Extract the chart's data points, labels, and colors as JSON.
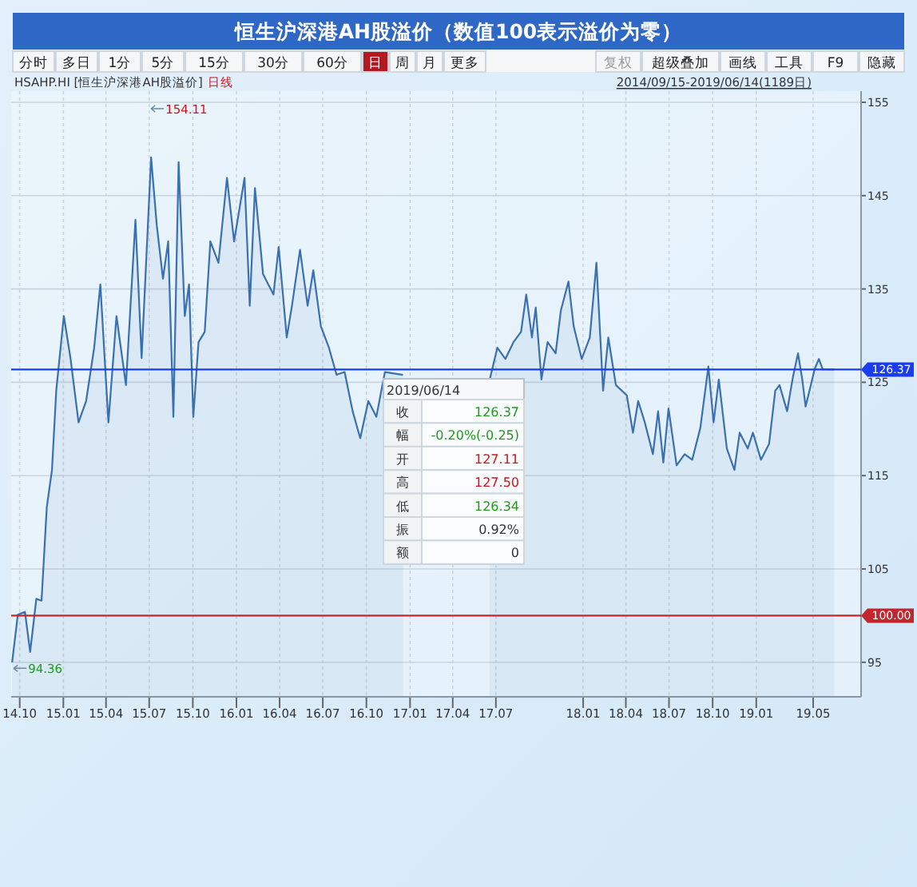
{
  "chart_data": {
    "type": "area",
    "title": "恒生沪深港AH股溢价（数值100表示溢价为零）",
    "x": [
      "2014-09-15",
      "2014-09-27",
      "2014-10-12",
      "2014-10-23",
      "2014-11-05",
      "2014-11-16",
      "2014-11-27",
      "2014-12-08",
      "2014-12-17",
      "2015-01-02",
      "2015-01-16",
      "2015-02-02",
      "2015-02-18",
      "2015-03-07",
      "2015-03-20",
      "2015-04-06",
      "2015-04-23",
      "2015-05-13",
      "2015-06-02",
      "2015-06-15",
      "2015-07-05",
      "2015-07-17",
      "2015-07-30",
      "2015-08-10",
      "2015-08-21",
      "2015-09-01",
      "2015-09-14",
      "2015-09-23",
      "2015-10-02",
      "2015-10-13",
      "2015-10-26",
      "2015-11-07",
      "2015-11-24",
      "2015-12-12",
      "2015-12-27",
      "2016-01-18",
      "2016-01-29",
      "2016-02-09",
      "2016-02-26",
      "2016-03-19",
      "2016-03-30",
      "2016-04-16",
      "2016-04-27",
      "2016-05-14",
      "2016-05-30",
      "2016-06-11",
      "2016-06-27",
      "2016-07-14",
      "2016-07-30",
      "2016-08-16",
      "2016-09-02",
      "2016-09-18",
      "2016-10-05",
      "2016-10-22",
      "2016-11-09",
      "2016-12-17",
      "2017-03-15",
      "2017-06-18",
      "2017-07-04",
      "2017-07-21",
      "2017-08-07",
      "2017-08-23",
      "2017-09-03",
      "2017-09-15",
      "2017-09-23",
      "2017-10-05",
      "2017-10-18",
      "2017-11-04",
      "2017-11-15",
      "2017-12-01",
      "2017-12-12",
      "2017-12-29",
      "2018-01-15",
      "2018-01-29",
      "2018-02-12",
      "2018-02-23",
      "2018-03-11",
      "2018-04-03",
      "2018-04-16",
      "2018-04-27",
      "2018-05-11",
      "2018-05-28",
      "2018-06-08",
      "2018-06-19",
      "2018-06-30",
      "2018-07-17",
      "2018-08-03",
      "2018-08-19",
      "2018-09-05",
      "2018-09-22",
      "2018-10-03",
      "2018-10-14",
      "2018-10-31",
      "2018-11-16",
      "2018-11-27",
      "2018-12-14",
      "2018-12-25",
      "2019-01-11",
      "2019-01-28",
      "2019-02-10",
      "2019-02-19",
      "2019-03-07",
      "2019-03-19",
      "2019-03-30",
      "2019-04-08",
      "2019-04-15",
      "2019-04-26",
      "2019-05-04",
      "2019-05-13",
      "2019-05-21",
      "2019-06-14"
    ],
    "series": [
      {
        "color": "#3a70b0",
        "values": [
          95.0,
          100.1,
          100.4,
          96.1,
          101.8,
          101.6,
          111.6,
          115.6,
          124.1,
          132.1,
          127.6,
          120.7,
          123.0,
          128.7,
          135.5,
          120.7,
          132.1,
          124.7,
          142.4,
          127.6,
          149.1,
          141.8,
          136.1,
          140.1,
          121.3,
          148.6,
          132.1,
          135.5,
          121.3,
          129.3,
          130.4,
          140.1,
          137.8,
          146.9,
          140.1,
          146.9,
          133.2,
          145.8,
          136.6,
          134.4,
          139.5,
          129.8,
          133.2,
          139.2,
          133.2,
          137.0,
          131.0,
          128.7,
          125.8,
          126.1,
          121.9,
          119.0,
          123.0,
          121.3,
          126.1,
          125.8,
          null,
          125.3,
          128.7,
          127.5,
          129.3,
          130.4,
          134.4,
          129.8,
          133.0,
          125.3,
          129.3,
          128.1,
          132.7,
          135.8,
          131.0,
          127.5,
          129.8,
          137.8,
          124.1,
          129.8,
          124.7,
          123.6,
          119.6,
          123.0,
          120.7,
          117.3,
          121.9,
          116.4,
          122.2,
          116.1,
          117.3,
          116.7,
          120.1,
          126.7,
          120.7,
          125.3,
          117.9,
          115.6,
          119.6,
          117.9,
          119.6,
          116.7,
          118.4,
          124.1,
          124.7,
          121.9,
          125.5,
          128.1,
          125.3,
          122.4,
          124.7,
          126.4,
          127.5,
          126.4,
          126.37
        ]
      }
    ],
    "xlim": [
      "2014-09-13",
      "2019-08-10"
    ],
    "xticks": [
      {
        "value": "2014-10-01",
        "label": "14.10"
      },
      {
        "value": "2015-01-01",
        "label": "15.01"
      },
      {
        "value": "2015-04-01",
        "label": "15.04"
      },
      {
        "value": "2015-07-01",
        "label": "15.07"
      },
      {
        "value": "2015-10-01",
        "label": "15.10"
      },
      {
        "value": "2016-01-01",
        "label": "16.01"
      },
      {
        "value": "2016-04-01",
        "label": "16.04"
      },
      {
        "value": "2016-07-01",
        "label": "16.07"
      },
      {
        "value": "2016-10-01",
        "label": "16.10"
      },
      {
        "value": "2017-01-01",
        "label": "17.01"
      },
      {
        "value": "2017-04-01",
        "label": "17.04"
      },
      {
        "value": "2017-07-01",
        "label": "17.07"
      },
      {
        "value": "2018-01-01",
        "label": "18.01"
      },
      {
        "value": "2018-04-01",
        "label": "18.04"
      },
      {
        "value": "2018-07-01",
        "label": "18.07"
      },
      {
        "value": "2018-10-01",
        "label": "18.10"
      },
      {
        "value": "2019-01-01",
        "label": "19.01"
      },
      {
        "value": "2019-05-01",
        "label": "19.05"
      }
    ],
    "ylim": [
      91.3,
      156.2
    ],
    "yticks": [
      95,
      105,
      115,
      125,
      135,
      145,
      155
    ],
    "grid": true,
    "marker": "none",
    "line_style": "solid",
    "ref_lines": [
      {
        "axis": "y",
        "value": 100,
        "label": "100.00",
        "color": "#c0282d"
      },
      {
        "axis": "y",
        "value": 126.37,
        "label": "126.37",
        "color": "#1a3cf0"
      }
    ],
    "annotations": [
      "分时",
      "多日",
      "1分",
      "5分",
      "15分",
      "30分",
      "60分",
      "日",
      "周",
      "月",
      "更多",
      "复权",
      "超级叠加",
      "画线",
      "工具",
      "F9",
      "隐藏",
      "HSAHP.HI [恒生沪深港AH股溢价]",
      "日线",
      "2014/09/15-2019/06/14(1189日)",
      "2019/06/14",
      "收",
      "126.37",
      "幅",
      "-0.20%(-0.25)",
      "开",
      "127.11",
      "高",
      "127.50",
      "低",
      "126.34",
      "振",
      "0.92%",
      "额",
      "0",
      "154.11",
      {
        "text": "94.36",
        "x": "2014-09-15",
        "y": 94.36
      }
    ]
  }
}
